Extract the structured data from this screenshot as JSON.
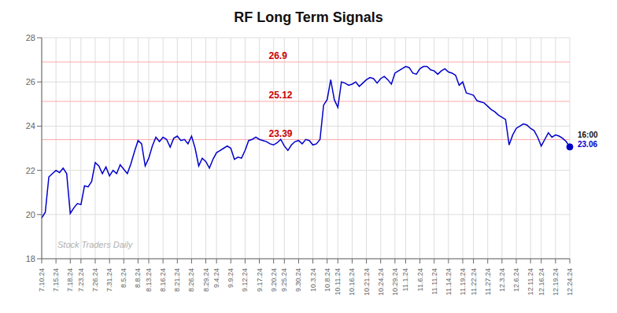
{
  "chart_data": {
    "type": "line",
    "title": "RF Long Term Signals",
    "categories": [
      "7.10.24",
      null,
      null,
      null,
      "7.15.24",
      null,
      null,
      null,
      "7.18.24",
      null,
      null,
      "7.23.24",
      null,
      null,
      null,
      "7.26.24",
      null,
      null,
      null,
      "7.31.24",
      null,
      null,
      null,
      "8.5.24",
      null,
      null,
      null,
      "8.8.24",
      null,
      null,
      "8.13.24",
      null,
      null,
      null,
      "8.16.24",
      null,
      null,
      null,
      "8.21.24",
      null,
      null,
      null,
      "8.26.24",
      null,
      null,
      null,
      "8.29.24",
      null,
      null,
      "9.4.24",
      null,
      null,
      null,
      "9.9.24",
      null,
      null,
      null,
      "9.12.24",
      null,
      null,
      null,
      "9.17.24",
      null,
      null,
      null,
      "9.20.24",
      null,
      null,
      "9.25.24",
      null,
      null,
      null,
      "9.30.24",
      null,
      null,
      null,
      "10.3.24",
      null,
      null,
      null,
      "10.8.24",
      null,
      null,
      "10.11.24",
      null,
      null,
      null,
      "10.16.24",
      null,
      null,
      null,
      "10.21.24",
      null,
      null,
      null,
      "10.24.24",
      null,
      null,
      null,
      "10.29.24",
      null,
      null,
      "11.1.24",
      null,
      null,
      null,
      "11.6.24",
      null,
      null,
      null,
      "11.11.24",
      null,
      null,
      null,
      "11.14.24",
      null,
      null,
      null,
      "11.19.24",
      null,
      null,
      "11.22.24",
      null,
      null,
      null,
      "11.27.24",
      null,
      null,
      null,
      "12.3.24",
      null,
      null,
      null,
      "12.6.24",
      null,
      null,
      null,
      "12.11.24",
      null,
      null,
      "12.16.24",
      null,
      null,
      null,
      "12.19.24",
      null,
      null,
      null,
      "12.24.24"
    ],
    "values": [
      19.85,
      20.1,
      21.7,
      21.85,
      22.0,
      21.9,
      22.1,
      21.85,
      20.05,
      20.3,
      20.5,
      20.45,
      21.3,
      21.25,
      21.5,
      22.35,
      22.2,
      21.85,
      22.15,
      21.75,
      22.0,
      21.85,
      22.25,
      22.05,
      21.85,
      22.3,
      22.85,
      23.35,
      23.2,
      22.2,
      22.55,
      23.1,
      23.5,
      23.3,
      23.5,
      23.4,
      23.05,
      23.45,
      23.55,
      23.35,
      23.4,
      23.2,
      23.55,
      23.0,
      22.2,
      22.55,
      22.4,
      22.1,
      22.5,
      22.8,
      22.9,
      23.0,
      23.1,
      23.0,
      22.5,
      22.6,
      22.55,
      22.9,
      23.35,
      23.4,
      23.5,
      23.4,
      23.35,
      23.3,
      23.2,
      23.15,
      23.25,
      23.4,
      23.1,
      22.9,
      23.15,
      23.3,
      23.35,
      23.2,
      23.4,
      23.35,
      23.15,
      23.2,
      23.4,
      24.95,
      25.2,
      26.1,
      25.2,
      24.85,
      26.0,
      25.95,
      25.85,
      25.9,
      26.0,
      25.8,
      25.95,
      26.1,
      26.2,
      26.15,
      25.95,
      26.15,
      26.25,
      26.1,
      25.9,
      26.4,
      26.5,
      26.6,
      26.7,
      26.65,
      26.4,
      26.35,
      26.6,
      26.7,
      26.7,
      26.55,
      26.5,
      26.35,
      26.5,
      26.6,
      26.45,
      26.4,
      26.3,
      25.85,
      26.0,
      25.5,
      25.45,
      25.4,
      25.15,
      25.1,
      25.05,
      24.9,
      24.75,
      24.65,
      24.5,
      24.4,
      24.3,
      23.15,
      23.6,
      23.9,
      24.0,
      24.1,
      24.05,
      23.9,
      23.8,
      23.5,
      23.1,
      23.4,
      23.7,
      23.5,
      23.6,
      23.55,
      23.45,
      23.3,
      23.06
    ],
    "color": "#0000cc",
    "ylim": [
      18,
      28
    ],
    "yticks": [
      18,
      20,
      22,
      24,
      26,
      28
    ],
    "grid": true,
    "reference_lines": [
      {
        "value": 26.9,
        "label": "26.9",
        "color": "#ffaaaa",
        "label_color": "#cc0000"
      },
      {
        "value": 25.12,
        "label": "25.12",
        "color": "#ffaaaa",
        "label_color": "#cc0000"
      },
      {
        "value": 23.39,
        "label": "23.39",
        "color": "#ffaaaa",
        "label_color": "#cc0000"
      }
    ],
    "watermark": "Stock Traders Daily",
    "end_labels": [
      {
        "text": "16:00"
      },
      {
        "text": "23.06",
        "color": "#0000cc"
      }
    ]
  }
}
